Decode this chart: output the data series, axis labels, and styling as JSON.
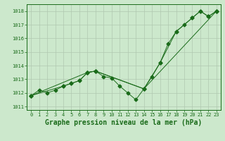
{
  "background_color": "#cce8cc",
  "plot_bg_color": "#cce8cc",
  "line_color": "#1a6b1a",
  "grid_color": "#b0c8b0",
  "xlabel": "Graphe pression niveau de la mer (hPa)",
  "xlabel_fontsize": 7,
  "ylim": [
    1010.75,
    1018.5
  ],
  "xlim": [
    -0.5,
    23.5
  ],
  "yticks": [
    1011,
    1012,
    1013,
    1014,
    1015,
    1016,
    1017,
    1018
  ],
  "xticks": [
    0,
    1,
    2,
    3,
    4,
    5,
    6,
    7,
    8,
    9,
    10,
    11,
    12,
    13,
    14,
    15,
    16,
    17,
    18,
    19,
    20,
    21,
    22,
    23
  ],
  "series1": [
    1011.8,
    1012.2,
    1012.0,
    1012.2,
    1012.5,
    1012.7,
    1012.9,
    1013.5,
    1013.6,
    1013.2,
    1013.1,
    1012.5,
    1012.0,
    1011.5,
    1012.3,
    1013.2,
    1014.2,
    1015.6,
    1016.5,
    1017.0,
    1017.5,
    1018.0,
    1017.6,
    1018.0
  ],
  "series3_x": [
    0,
    7,
    8,
    14,
    23
  ],
  "series3_y": [
    1011.8,
    1013.5,
    1013.6,
    1012.3,
    1018.0
  ],
  "series4_x": [
    0,
    4,
    5,
    6,
    7,
    8,
    14,
    16,
    18,
    20,
    21,
    22,
    23
  ],
  "series4_y": [
    1011.8,
    1012.5,
    1012.7,
    1012.9,
    1013.5,
    1013.6,
    1012.3,
    1014.2,
    1016.5,
    1017.5,
    1018.0,
    1017.6,
    1018.0
  ]
}
